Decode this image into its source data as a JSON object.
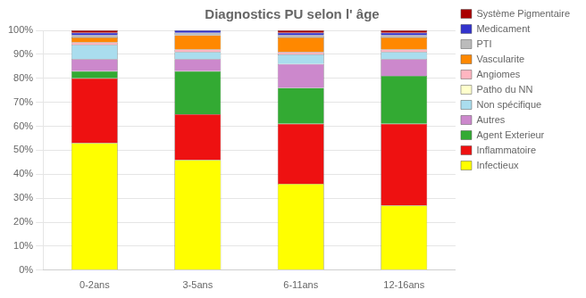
{
  "chart_data": {
    "type": "bar",
    "title": "Diagnostics PU selon l' âge",
    "categories": [
      "0-2ans",
      "3-5ans",
      "6-11ans",
      "12-16ans"
    ],
    "series": [
      {
        "name": "Infectieux",
        "color": "#FFFF00",
        "values": [
          53,
          46,
          36,
          27
        ]
      },
      {
        "name": "Inflammatoire",
        "color": "#EE1111",
        "values": [
          27,
          19,
          25,
          34
        ]
      },
      {
        "name": "Agent Exterieur",
        "color": "#33AA33",
        "values": [
          3,
          18,
          15,
          20
        ]
      },
      {
        "name": "Autres",
        "color": "#CC88CC",
        "values": [
          5,
          5,
          10,
          7
        ]
      },
      {
        "name": "Non spécifique",
        "color": "#AADDEE",
        "values": [
          6,
          3,
          4,
          3
        ]
      },
      {
        "name": "Patho du NN",
        "color": "#FFFFCC",
        "values": [
          0,
          0,
          0,
          0
        ]
      },
      {
        "name": "Angiomes",
        "color": "#FFB6C1",
        "values": [
          1,
          1,
          1,
          1
        ]
      },
      {
        "name": "Vascularite",
        "color": "#FF8800",
        "values": [
          2,
          6,
          6,
          5
        ]
      },
      {
        "name": "PTI",
        "color": "#BBBBBB",
        "values": [
          1,
          1,
          1,
          1
        ]
      },
      {
        "name": "Medicament",
        "color": "#3333CC",
        "values": [
          1,
          1,
          1,
          1
        ]
      },
      {
        "name": "Système Pigmentaire",
        "color": "#AA0000",
        "values": [
          1,
          0,
          1,
          1
        ]
      }
    ],
    "stacked": true,
    "ylim": [
      0,
      100
    ],
    "yticks": [
      {
        "value": 0,
        "label": "0%"
      },
      {
        "value": 10,
        "label": "10%"
      },
      {
        "value": 20,
        "label": "20%"
      },
      {
        "value": 30,
        "label": "30%"
      },
      {
        "value": 40,
        "label": "40%"
      },
      {
        "value": 50,
        "label": "50%"
      },
      {
        "value": 60,
        "label": "60%"
      },
      {
        "value": 70,
        "label": "70%"
      },
      {
        "value": 80,
        "label": "80%"
      },
      {
        "value": 90,
        "label": "90%"
      },
      {
        "value": 100,
        "label": "100%"
      }
    ],
    "grid": true,
    "legend": "right"
  }
}
